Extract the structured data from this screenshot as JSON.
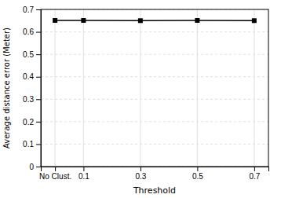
{
  "chart_data": {
    "type": "line",
    "x": [
      0,
      0.1,
      0.3,
      0.5,
      0.7
    ],
    "values": [
      0.651,
      0.651,
      0.65,
      0.651,
      0.65
    ],
    "xlabel": "Threshold",
    "ylabel": "Average distance error (Meter)",
    "xlim": [
      -0.05,
      0.75
    ],
    "xticks": [
      {
        "value": 0,
        "label": "No Clust."
      },
      0.1,
      0.3,
      0.5,
      0.7
    ],
    "ylim": [
      0,
      0.7
    ],
    "yticks": [
      0,
      0.1,
      0.2,
      0.3,
      0.4,
      0.5,
      0.6,
      0.7
    ],
    "color": "#000000",
    "marker": "square",
    "grid": true
  }
}
